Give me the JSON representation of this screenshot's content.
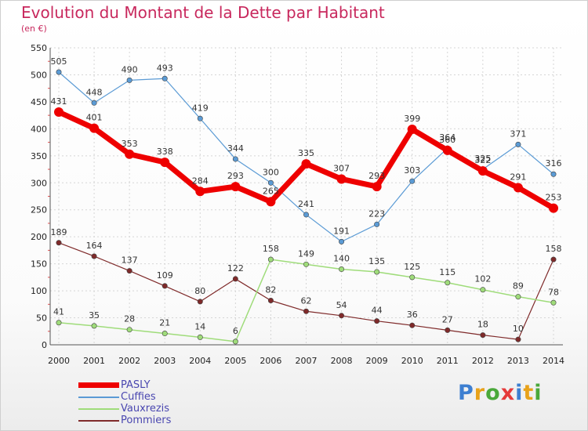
{
  "header": {
    "title": "Evolution du Montant de la Dette par Habitant",
    "subtitle": "(en €)"
  },
  "brand": {
    "text": "Proxiti",
    "colors": [
      "#3d7fd1",
      "#e8a21a",
      "#4aa83a",
      "#e53a3a",
      "#3d7fd1",
      "#e8a21a",
      "#4aa83a"
    ]
  },
  "chart_data": {
    "type": "line",
    "x": [
      "2000",
      "2001",
      "2002",
      "2003",
      "2004",
      "2005",
      "2006",
      "2007",
      "2008",
      "2009",
      "2010",
      "2011",
      "2012",
      "2013",
      "2014"
    ],
    "yticks": [
      0,
      50,
      100,
      150,
      200,
      250,
      300,
      350,
      400,
      450,
      500,
      550
    ],
    "ylim": [
      0,
      550
    ],
    "grid": true,
    "legend_position": "bottom-left",
    "series": [
      {
        "name": "PASLY",
        "color": "#ee0000",
        "values": [
          431,
          401,
          353,
          338,
          284,
          293,
          265,
          335,
          307,
          293,
          399,
          360,
          322,
          291,
          253
        ]
      },
      {
        "name": "Cuffies",
        "color": "#5b9bd5",
        "values": [
          505,
          448,
          490,
          493,
          419,
          344,
          300,
          241,
          191,
          223,
          303,
          364,
          325,
          371,
          316
        ]
      },
      {
        "name": "Vauxrezis",
        "color": "#9fdc7a",
        "values": [
          41,
          35,
          28,
          21,
          14,
          6,
          158,
          149,
          140,
          135,
          125,
          115,
          102,
          89,
          78
        ]
      },
      {
        "name": "Pommiers",
        "color": "#7f2a2a",
        "values": [
          189,
          164,
          137,
          109,
          80,
          122,
          82,
          62,
          54,
          44,
          36,
          27,
          18,
          10,
          158
        ]
      }
    ]
  }
}
